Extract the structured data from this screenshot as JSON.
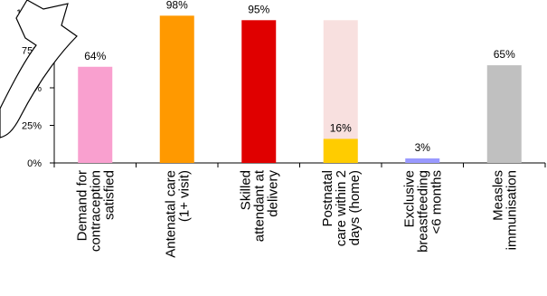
{
  "chart_data": {
    "type": "bar",
    "categories": [
      "Demand for\ncontraception\nsatisfied",
      "Antenatal care\n(1+ visit)",
      "Skilled\nattendant at\ndelivery",
      "Postnatal\ncare within 2\ndays (home)",
      "Exclusive\nbreastfeeding\n<6 months",
      "Measles\nimmunisation"
    ],
    "series": [
      {
        "colors": [
          "#f9a0cf",
          "#ff9900",
          "#e00000",
          "#ffcc00",
          "#9999ff",
          "#c0c0c0"
        ],
        "values": [
          64,
          98,
          95,
          16,
          3,
          65
        ],
        "value_labels": [
          "64%",
          "98%",
          "95%",
          "16%",
          "3%",
          "65%"
        ]
      },
      {
        "color": "#f8e0df",
        "values": [
          null,
          null,
          null,
          95,
          null,
          null
        ]
      }
    ],
    "ylim": [
      0,
      100
    ],
    "yticks": [
      {
        "value": 0,
        "label": "0%"
      },
      {
        "value": 25,
        "label": "25%"
      },
      {
        "value": 50,
        "label": "50%"
      },
      {
        "value": 75,
        "label": "75%"
      },
      {
        "value": 100,
        "label": "100%"
      }
    ],
    "grid": false
  }
}
